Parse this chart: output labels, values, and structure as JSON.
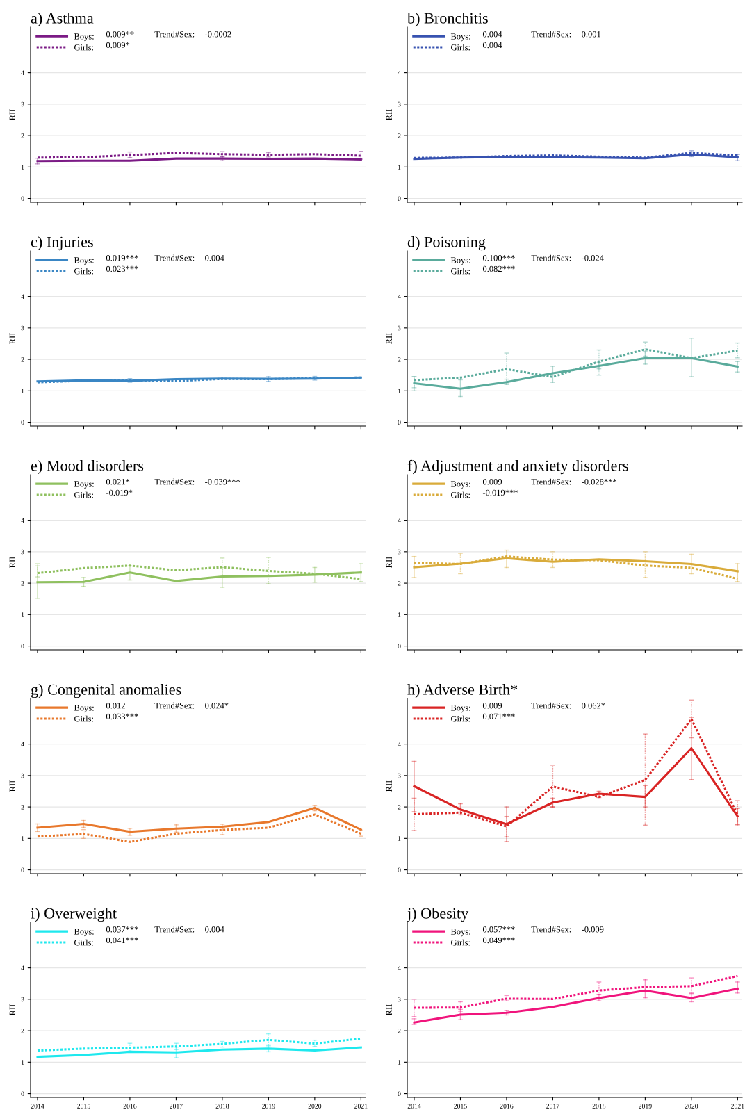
{
  "chart_data": [
    {
      "type": "line",
      "title": "a) Asthma",
      "ylabel": "RII",
      "x": [
        2014,
        2015,
        2016,
        2017,
        2018,
        2019,
        2020,
        2021
      ],
      "xlim": [
        2013.85,
        2021.1
      ],
      "xticks": [
        2014,
        2015,
        2016,
        2017,
        2018,
        2019,
        2020,
        2021
      ],
      "ylim": [
        -0.12,
        5.45
      ],
      "yticks": [
        0,
        1,
        2,
        3,
        4
      ],
      "grid": "y",
      "legend": "top left",
      "tick_labels": "y",
      "annotations": [
        "0.009**",
        "0.009*",
        "Trend#Sex:",
        "-0.0002"
      ],
      "series": [
        {
          "name": "Boys:",
          "color": "#7b1a85",
          "line_style": "solid",
          "values": [
            1.19,
            1.2,
            1.2,
            1.27,
            1.27,
            1.26,
            1.27,
            1.24
          ],
          "errors": [
            [
              1.1,
              1.28
            ],
            null,
            null,
            null,
            [
              1.2,
              1.33
            ],
            null,
            null,
            null
          ]
        },
        {
          "name": "Girls:",
          "color": "#7b1a85",
          "line_style": "dotted",
          "values": [
            1.3,
            1.31,
            1.38,
            1.45,
            1.41,
            1.39,
            1.41,
            1.36
          ],
          "errors": [
            null,
            null,
            [
              1.3,
              1.48
            ],
            null,
            [
              1.32,
              1.49
            ],
            [
              1.32,
              1.46
            ],
            null,
            [
              1.25,
              1.5
            ]
          ]
        }
      ]
    },
    {
      "type": "line",
      "title": "b) Bronchitis",
      "ylabel": "RII",
      "x": [
        2014,
        2015,
        2016,
        2017,
        2018,
        2019,
        2020,
        2021
      ],
      "xlim": [
        2013.85,
        2021.1
      ],
      "xticks": [
        2014,
        2015,
        2016,
        2017,
        2018,
        2019,
        2020,
        2021
      ],
      "ylim": [
        -0.12,
        5.45
      ],
      "yticks": [
        0,
        1,
        2,
        3,
        4
      ],
      "grid": "y",
      "legend": "top left",
      "tick_labels": "y",
      "annotations": [
        "0.004",
        "0.004",
        "Trend#Sex:",
        "0.001"
      ],
      "series": [
        {
          "name": "Boys:",
          "color": "#3752b0",
          "line_style": "solid",
          "values": [
            1.26,
            1.3,
            1.32,
            1.31,
            1.3,
            1.28,
            1.4,
            1.31
          ],
          "errors": [
            null,
            null,
            null,
            null,
            null,
            null,
            [
              1.33,
              1.48
            ],
            [
              1.2,
              1.4
            ]
          ]
        },
        {
          "name": "Girls:",
          "color": "#3752b0",
          "line_style": "dotted",
          "values": [
            1.29,
            1.3,
            1.35,
            1.37,
            1.33,
            1.3,
            1.45,
            1.37
          ],
          "errors": [
            null,
            null,
            null,
            null,
            null,
            null,
            [
              1.38,
              1.52
            ],
            null
          ]
        }
      ]
    },
    {
      "type": "line",
      "title": "c) Injuries",
      "ylabel": "RII",
      "x": [
        2014,
        2015,
        2016,
        2017,
        2018,
        2019,
        2020,
        2021
      ],
      "xlim": [
        2013.85,
        2021.1
      ],
      "xticks": [
        2014,
        2015,
        2016,
        2017,
        2018,
        2019,
        2020,
        2021
      ],
      "ylim": [
        -0.12,
        5.45
      ],
      "yticks": [
        0,
        1,
        2,
        3,
        4
      ],
      "grid": "y",
      "legend": "top left",
      "tick_labels": "y",
      "annotations": [
        "0.019***",
        "0.023***",
        "Trend#Sex:",
        "0.004"
      ],
      "series": [
        {
          "name": "Boys:",
          "color": "#3a86c4",
          "line_style": "solid",
          "values": [
            1.3,
            1.33,
            1.32,
            1.37,
            1.39,
            1.38,
            1.39,
            1.42
          ],
          "errors": [
            null,
            null,
            null,
            null,
            null,
            [
              1.3,
              1.45
            ],
            null,
            null
          ]
        },
        {
          "name": "Girls:",
          "color": "#3a86c4",
          "line_style": "dotted",
          "values": [
            1.27,
            1.32,
            1.33,
            1.31,
            1.38,
            1.37,
            1.41,
            1.42
          ],
          "errors": [
            null,
            null,
            [
              1.27,
              1.39
            ],
            null,
            null,
            null,
            [
              1.34,
              1.46
            ],
            null
          ]
        }
      ]
    },
    {
      "type": "line",
      "title": "d) Poisoning",
      "ylabel": "RII",
      "x": [
        2014,
        2015,
        2016,
        2017,
        2018,
        2019,
        2020,
        2021
      ],
      "xlim": [
        2013.85,
        2021.1
      ],
      "xticks": [
        2014,
        2015,
        2016,
        2017,
        2018,
        2019,
        2020,
        2021
      ],
      "ylim": [
        -0.12,
        5.45
      ],
      "yticks": [
        0,
        1,
        2,
        3,
        4
      ],
      "grid": "y",
      "legend": "top left",
      "tick_labels": "y",
      "annotations": [
        "0.100***",
        "0.082***",
        "Trend#Sex:",
        "-0.024"
      ],
      "series": [
        {
          "name": "Boys:",
          "color": "#5aab9c",
          "line_style": "solid",
          "values": [
            1.24,
            1.07,
            1.28,
            1.56,
            1.79,
            2.04,
            2.04,
            1.77
          ],
          "errors": [
            [
              1.0,
              1.45
            ],
            [
              0.82,
              1.35
            ],
            [
              1.2,
              1.37
            ],
            [
              1.27,
              1.78
            ],
            [
              1.7,
              1.9
            ],
            [
              1.85,
              2.25
            ],
            [
              1.45,
              2.67
            ],
            [
              1.6,
              1.93
            ]
          ]
        },
        {
          "name": "Girls:",
          "color": "#5aab9c",
          "line_style": "dotted",
          "values": [
            1.34,
            1.42,
            1.69,
            1.44,
            1.93,
            2.32,
            2.04,
            2.28
          ],
          "errors": [
            [
              1.1,
              1.45
            ],
            null,
            [
              1.25,
              2.2
            ],
            null,
            [
              1.5,
              2.3
            ],
            [
              2.1,
              2.55
            ],
            null,
            [
              2.05,
              2.52
            ]
          ]
        }
      ]
    },
    {
      "type": "line",
      "title": "e) Mood disorders",
      "ylabel": "RII",
      "x": [
        2014,
        2015,
        2016,
        2017,
        2018,
        2019,
        2020,
        2021
      ],
      "xlim": [
        2013.85,
        2021.1
      ],
      "xticks": [
        2014,
        2015,
        2016,
        2017,
        2018,
        2019,
        2020,
        2021
      ],
      "ylim": [
        -0.12,
        5.45
      ],
      "yticks": [
        0,
        1,
        2,
        3,
        4
      ],
      "grid": "y",
      "legend": "top left",
      "tick_labels": "y",
      "annotations": [
        "0.021*",
        "-0.019*",
        "Trend#Sex:",
        "-0.039***"
      ],
      "series": [
        {
          "name": "Boys:",
          "color": "#8fc05f",
          "line_style": "solid",
          "values": [
            2.03,
            2.04,
            2.34,
            2.07,
            2.21,
            2.23,
            2.27,
            2.34
          ],
          "errors": [
            [
              1.52,
              2.55
            ],
            [
              1.9,
              2.18
            ],
            [
              2.1,
              2.55
            ],
            null,
            [
              1.87,
              2.5
            ],
            null,
            [
              2.03,
              2.5
            ],
            [
              2.05,
              2.62
            ]
          ]
        },
        {
          "name": "Girls:",
          "color": "#8fc05f",
          "line_style": "dotted",
          "values": [
            2.32,
            2.48,
            2.56,
            2.41,
            2.51,
            2.39,
            2.3,
            2.13
          ],
          "errors": [
            [
              2.2,
              2.62
            ],
            null,
            null,
            null,
            [
              2.2,
              2.8
            ],
            [
              1.98,
              2.82
            ],
            null,
            null
          ]
        }
      ]
    },
    {
      "type": "line",
      "title": "f) Adjustment and anxiety disorders",
      "ylabel": "RII",
      "x": [
        2014,
        2015,
        2016,
        2017,
        2018,
        2019,
        2020,
        2021
      ],
      "xlim": [
        2013.85,
        2021.1
      ],
      "xticks": [
        2014,
        2015,
        2016,
        2017,
        2018,
        2019,
        2020,
        2021
      ],
      "ylim": [
        -0.12,
        5.45
      ],
      "yticks": [
        0,
        1,
        2,
        3,
        4
      ],
      "grid": "y",
      "legend": "top left",
      "tick_labels": "y",
      "annotations": [
        "0.009",
        "-0.019***",
        "Trend#Sex:",
        "-0.028***"
      ],
      "series": [
        {
          "name": "Boys:",
          "color": "#d9ab3a",
          "line_style": "solid",
          "values": [
            2.51,
            2.62,
            2.79,
            2.68,
            2.76,
            2.7,
            2.61,
            2.38
          ],
          "errors": [
            [
              2.18,
              2.85
            ],
            null,
            [
              2.5,
              3.05
            ],
            null,
            null,
            null,
            [
              2.3,
              2.92
            ],
            [
              2.05,
              2.62
            ]
          ]
        },
        {
          "name": "Girls:",
          "color": "#d9ab3a",
          "line_style": "dotted",
          "values": [
            2.65,
            2.61,
            2.85,
            2.75,
            2.73,
            2.56,
            2.49,
            2.14
          ],
          "errors": [
            null,
            [
              2.3,
              2.95
            ],
            null,
            [
              2.5,
              3.0
            ],
            null,
            [
              2.18,
              3.0
            ],
            null,
            null
          ]
        }
      ]
    },
    {
      "type": "line",
      "title": "g) Congenital anomalies",
      "ylabel": "RII",
      "x": [
        2014,
        2015,
        2016,
        2017,
        2018,
        2019,
        2020,
        2021
      ],
      "xlim": [
        2013.85,
        2021.1
      ],
      "xticks": [
        2014,
        2015,
        2016,
        2017,
        2018,
        2019,
        2020,
        2021
      ],
      "ylim": [
        -0.12,
        5.45
      ],
      "yticks": [
        0,
        1,
        2,
        3,
        4
      ],
      "grid": "y",
      "legend": "top left",
      "tick_labels": "y",
      "annotations": [
        "0.012",
        "0.033***",
        "Trend#Sex:",
        "0.024*"
      ],
      "series": [
        {
          "name": "Boys:",
          "color": "#e8782c",
          "line_style": "solid",
          "values": [
            1.34,
            1.46,
            1.21,
            1.31,
            1.37,
            1.52,
            1.97,
            1.28
          ],
          "errors": [
            [
              1.22,
              1.46
            ],
            [
              1.35,
              1.57
            ],
            [
              1.1,
              1.32
            ],
            [
              1.2,
              1.43
            ],
            [
              1.27,
              1.45
            ],
            null,
            [
              1.88,
              2.05
            ],
            null
          ]
        },
        {
          "name": "Girls:",
          "color": "#e8782c",
          "line_style": "dotted",
          "values": [
            1.06,
            1.14,
            0.89,
            1.15,
            1.27,
            1.34,
            1.76,
            1.15
          ],
          "errors": [
            null,
            [
              1.0,
              1.28
            ],
            null,
            null,
            [
              1.12,
              1.38
            ],
            null,
            null,
            [
              1.07,
              1.25
            ]
          ]
        }
      ]
    },
    {
      "type": "line",
      "title": "h) Adverse Birth*",
      "ylabel": "RII",
      "x": [
        2014,
        2015,
        2016,
        2017,
        2018,
        2019,
        2020,
        2021
      ],
      "xlim": [
        2013.85,
        2021.1
      ],
      "xticks": [
        2014,
        2015,
        2016,
        2017,
        2018,
        2019,
        2020,
        2021
      ],
      "ylim": [
        -0.12,
        5.45
      ],
      "yticks": [
        0,
        1,
        2,
        3,
        4
      ],
      "grid": "y",
      "legend": "top left",
      "tick_labels": "y",
      "annotations": [
        "0.009",
        "0.071***",
        "Trend#Sex:",
        "0.062*"
      ],
      "series": [
        {
          "name": "Boys:",
          "color": "#d92424",
          "line_style": "solid",
          "values": [
            2.66,
            1.92,
            1.45,
            2.14,
            2.42,
            2.32,
            3.87,
            1.7
          ],
          "errors": [
            [
              1.85,
              3.45
            ],
            [
              1.75,
              2.1
            ],
            [
              0.9,
              2.0
            ],
            [
              2.0,
              2.28
            ],
            [
              2.3,
              2.5
            ],
            [
              2.0,
              2.68
            ],
            [
              2.87,
              4.85
            ],
            [
              1.43,
              1.95
            ]
          ]
        },
        {
          "name": "Girls:",
          "color": "#d92424",
          "line_style": "dotted",
          "values": [
            1.77,
            1.82,
            1.38,
            2.65,
            2.32,
            2.86,
            4.8,
            1.75
          ],
          "errors": [
            [
              1.25,
              2.28
            ],
            null,
            [
              1.05,
              1.7
            ],
            [
              2.0,
              3.33
            ],
            null,
            [
              1.42,
              4.32
            ],
            [
              4.2,
              5.4
            ],
            [
              1.45,
              2.2
            ]
          ]
        }
      ]
    },
    {
      "type": "line",
      "title": "i) Overweight",
      "ylabel": "RII",
      "x": [
        2014,
        2015,
        2016,
        2017,
        2018,
        2019,
        2020,
        2021
      ],
      "xlim": [
        2013.85,
        2021.1
      ],
      "xticks": [
        2014,
        2015,
        2016,
        2017,
        2018,
        2019,
        2020,
        2021
      ],
      "ylim": [
        -0.12,
        5.45
      ],
      "yticks": [
        0,
        1,
        2,
        3,
        4
      ],
      "grid": "y",
      "legend": "top left",
      "annotations": [
        "0.037***",
        "0.041***",
        "Trend#Sex:",
        "0.004"
      ],
      "series": [
        {
          "name": "Boys:",
          "color": "#1ee8ee",
          "line_style": "solid",
          "values": [
            1.17,
            1.23,
            1.33,
            1.31,
            1.4,
            1.43,
            1.37,
            1.47
          ],
          "errors": [
            null,
            null,
            null,
            [
              1.14,
              1.48
            ],
            null,
            [
              1.33,
              1.52
            ],
            null,
            null
          ]
        },
        {
          "name": "Girls:",
          "color": "#1ee8ee",
          "line_style": "dotted",
          "values": [
            1.37,
            1.43,
            1.46,
            1.5,
            1.58,
            1.71,
            1.59,
            1.75
          ],
          "errors": [
            null,
            null,
            [
              1.35,
              1.6
            ],
            [
              1.4,
              1.6
            ],
            [
              1.48,
              1.66
            ],
            [
              1.55,
              1.9
            ],
            [
              1.5,
              1.7
            ],
            null
          ]
        }
      ]
    },
    {
      "type": "line",
      "title": "j) Obesity",
      "ylabel": "RII",
      "x": [
        2014,
        2015,
        2016,
        2017,
        2018,
        2019,
        2020,
        2021
      ],
      "xlim": [
        2013.85,
        2021.1
      ],
      "xticks": [
        2014,
        2015,
        2016,
        2017,
        2018,
        2019,
        2020,
        2021
      ],
      "ylim": [
        -0.12,
        5.45
      ],
      "yticks": [
        0,
        1,
        2,
        3,
        4
      ],
      "grid": "y",
      "legend": "top left",
      "annotations": [
        "0.057***",
        "0.049***",
        "Trend#Sex:",
        "-0.009"
      ],
      "series": [
        {
          "name": "Boys:",
          "color": "#f0147c",
          "line_style": "solid",
          "values": [
            2.26,
            2.51,
            2.57,
            2.76,
            3.04,
            3.28,
            3.04,
            3.34
          ],
          "errors": [
            [
              2.2,
              2.38
            ],
            [
              2.35,
              2.68
            ],
            [
              2.5,
              2.65
            ],
            null,
            [
              2.95,
              3.15
            ],
            [
              3.05,
              3.62
            ],
            [
              2.92,
              3.18
            ],
            [
              3.2,
              3.55
            ]
          ]
        },
        {
          "name": "Girls:",
          "color": "#f0147c",
          "line_style": "dotted",
          "values": [
            2.73,
            2.74,
            3.02,
            3.01,
            3.28,
            3.39,
            3.42,
            3.74
          ],
          "errors": [
            [
              2.45,
              3.0
            ],
            [
              2.62,
              2.92
            ],
            [
              2.95,
              3.12
            ],
            null,
            [
              3.15,
              3.55
            ],
            null,
            [
              3.2,
              3.68
            ],
            null
          ]
        }
      ]
    }
  ]
}
